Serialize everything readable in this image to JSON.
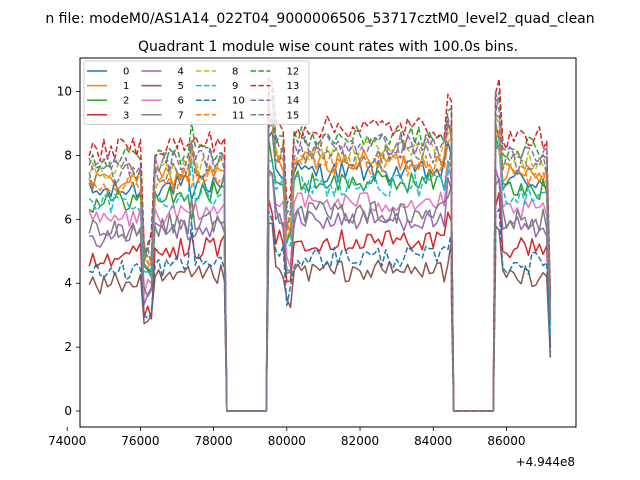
{
  "chart_data": {
    "type": "line",
    "suptitle": "n file: modeM0/AS1A14_022T04_9000006506_53717cztM0_level2_quad_clean",
    "title": "Quadrant 1 module wise count rates with 100.0s bins.",
    "xlabel": "",
    "ylabel": "",
    "x_offset_label": "+4.944e8",
    "xlim": [
      74350,
      87900
    ],
    "ylim": [
      -0.5,
      11.05
    ],
    "xticks": [
      74000,
      76000,
      78000,
      80000,
      82000,
      84000,
      86000
    ],
    "xtick_labels": [
      "74000",
      "76000",
      "78000",
      "80000",
      "82000",
      "84000",
      "86000"
    ],
    "yticks": [
      0,
      2,
      4,
      6,
      8,
      10
    ],
    "ytick_labels": [
      "0",
      "2",
      "4",
      "6",
      "8",
      "10"
    ],
    "grid": false,
    "legend_placement": "top-left",
    "legend_columns": 4,
    "gap_intervals": [
      [
        78300,
        79500
      ],
      [
        84500,
        85700
      ]
    ],
    "segments": [
      [
        74600,
        78300
      ],
      [
        79500,
        84500
      ],
      [
        85700,
        87250
      ]
    ],
    "series": [
      {
        "name": "0",
        "color": "#1f77b4",
        "style": "solid",
        "level": 7.0
      },
      {
        "name": "1",
        "color": "#ff7f0e",
        "style": "solid",
        "level": 7.3
      },
      {
        "name": "2",
        "color": "#2ca02c",
        "style": "solid",
        "level": 6.7
      },
      {
        "name": "3",
        "color": "#d62728",
        "style": "solid",
        "level": 5.0
      },
      {
        "name": "4",
        "color": "#9467bd",
        "style": "solid",
        "level": 5.6
      },
      {
        "name": "5",
        "color": "#8c564b",
        "style": "solid",
        "level": 4.1
      },
      {
        "name": "6",
        "color": "#e377c2",
        "style": "solid",
        "level": 6.1
      },
      {
        "name": "7",
        "color": "#7f7f7f",
        "style": "solid",
        "level": 5.8
      },
      {
        "name": "8",
        "color": "#bcbd22",
        "style": "dashed",
        "level": 7.6
      },
      {
        "name": "9",
        "color": "#17becf",
        "style": "dashed",
        "level": 6.6
      },
      {
        "name": "10",
        "color": "#1f77b4",
        "style": "dashed",
        "level": 4.5
      },
      {
        "name": "11",
        "color": "#ff7f0e",
        "style": "dashed",
        "level": 7.2
      },
      {
        "name": "12",
        "color": "#2ca02c",
        "style": "dashed",
        "level": 8.0
      },
      {
        "name": "13",
        "color": "#d62728",
        "style": "dashed",
        "level": 8.3
      },
      {
        "name": "14",
        "color": "#9467bd",
        "style": "dashed",
        "level": 7.8
      },
      {
        "name": "15",
        "color": "#7f7f7f",
        "style": "dashed",
        "level": 7.5
      }
    ]
  }
}
